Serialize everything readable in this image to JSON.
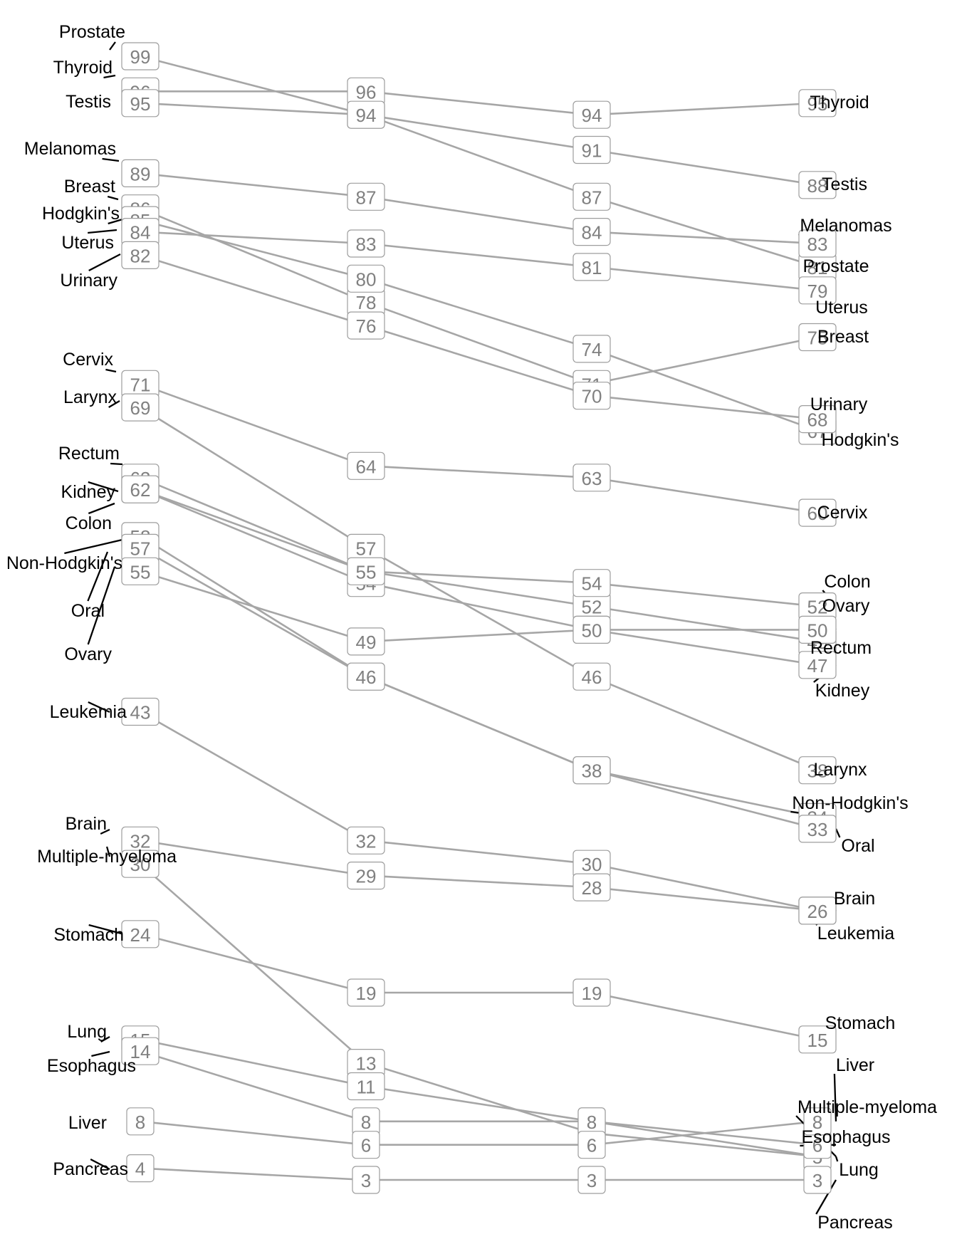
{
  "chart_data": {
    "type": "slopegraph",
    "title": "",
    "xlabel": "",
    "ylabel": "",
    "columns": 4,
    "ylim": [
      3,
      99
    ],
    "grid": false,
    "colors": {
      "line": "#a6a6a6",
      "box_border": "#9e9e9e",
      "value_text": "#808080",
      "label_text": "#000000"
    },
    "series": [
      {
        "name": "Prostate",
        "values": [
          99,
          94,
          87,
          81
        ]
      },
      {
        "name": "Thyroid",
        "values": [
          96,
          96,
          94,
          95
        ]
      },
      {
        "name": "Testis",
        "values": [
          95,
          94,
          91,
          88
        ]
      },
      {
        "name": "Melanomas",
        "values": [
          89,
          87,
          84,
          83
        ]
      },
      {
        "name": "Breast",
        "values": [
          86,
          78,
          71,
          75
        ]
      },
      {
        "name": "Hodgkin's",
        "values": [
          85,
          80,
          74,
          67
        ]
      },
      {
        "name": "Uterus",
        "values": [
          84,
          83,
          81,
          79
        ]
      },
      {
        "name": "Urinary",
        "values": [
          82,
          76,
          70,
          68
        ]
      },
      {
        "name": "Cervix",
        "values": [
          71,
          64,
          63,
          60
        ]
      },
      {
        "name": "Larynx",
        "values": [
          69,
          57,
          46,
          38
        ]
      },
      {
        "name": "Rectum",
        "values": [
          63,
          55,
          52,
          49
        ]
      },
      {
        "name": "Kidney",
        "values": [
          62,
          54,
          50,
          47
        ]
      },
      {
        "name": "Colon",
        "values": [
          62,
          55,
          54,
          52
        ]
      },
      {
        "name": "Non-Hodgkin's",
        "values": [
          58,
          46,
          38,
          34
        ]
      },
      {
        "name": "Oral",
        "values": [
          57,
          46,
          38,
          33
        ]
      },
      {
        "name": "Ovary",
        "values": [
          55,
          49,
          50,
          50
        ]
      },
      {
        "name": "Leukemia",
        "values": [
          43,
          32,
          30,
          26
        ]
      },
      {
        "name": "Brain",
        "values": [
          32,
          29,
          28,
          26
        ]
      },
      {
        "name": "Multiple-myeloma",
        "values": [
          30,
          13,
          7,
          5
        ]
      },
      {
        "name": "Stomach",
        "values": [
          24,
          19,
          19,
          15
        ]
      },
      {
        "name": "Lung",
        "values": [
          15,
          11,
          8,
          5
        ]
      },
      {
        "name": "Esophagus",
        "values": [
          14,
          8,
          8,
          6
        ]
      },
      {
        "name": "Liver",
        "values": [
          8,
          6,
          6,
          8
        ]
      },
      {
        "name": "Pancreas",
        "values": [
          4,
          3,
          3,
          3
        ]
      }
    ]
  }
}
